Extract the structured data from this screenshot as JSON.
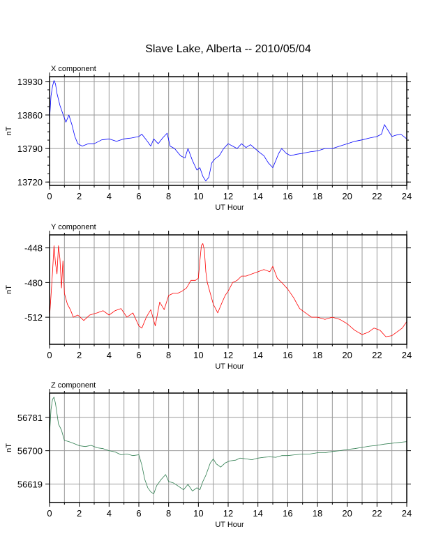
{
  "page": {
    "title": "Slave Lake, Alberta -- 2010/05/04"
  },
  "chart_data": [
    {
      "type": "line",
      "title": "X component",
      "xlabel": "UT Hour",
      "ylabel": "nT",
      "xlim": [
        0,
        24
      ],
      "ylim": [
        13713,
        13940
      ],
      "xticks": [
        0,
        2,
        4,
        6,
        8,
        10,
        12,
        14,
        16,
        18,
        20,
        22,
        24
      ],
      "yticks": [
        13720,
        13790,
        13860,
        13930
      ],
      "grid": true,
      "color": "#0000ff",
      "series": [
        {
          "x": [
            0,
            0.1,
            0.2,
            0.3,
            0.4,
            0.5,
            0.7,
            0.9,
            1.1,
            1.3,
            1.5,
            1.7,
            1.9,
            2.2,
            2.6,
            3.0,
            3.5,
            4.0,
            4.5,
            5.0,
            5.5,
            6.0,
            6.2,
            6.5,
            6.8,
            7.0,
            7.3,
            7.6,
            7.9,
            8.1,
            8.4,
            8.8,
            9.1,
            9.3,
            9.6,
            9.9,
            10.1,
            10.3,
            10.5,
            10.7,
            10.9,
            11.1,
            11.4,
            11.7,
            12.0,
            12.3,
            12.6,
            12.9,
            13.2,
            13.5,
            13.8,
            14.1,
            14.4,
            14.7,
            15.0,
            15.2,
            15.4,
            15.6,
            15.9,
            16.2,
            16.6,
            17.0,
            17.5,
            18.0,
            18.5,
            19.0,
            19.5,
            20.0,
            20.5,
            21.0,
            21.5,
            22.0,
            22.3,
            22.5,
            22.8,
            23.0,
            23.3,
            23.6,
            24.0
          ],
          "y": [
            13850,
            13900,
            13920,
            13932,
            13925,
            13905,
            13880,
            13862,
            13845,
            13860,
            13840,
            13815,
            13800,
            13795,
            13800,
            13800,
            13808,
            13810,
            13805,
            13810,
            13812,
            13815,
            13820,
            13808,
            13795,
            13810,
            13800,
            13812,
            13822,
            13795,
            13790,
            13775,
            13770,
            13790,
            13765,
            13745,
            13750,
            13732,
            13722,
            13730,
            13760,
            13768,
            13775,
            13790,
            13800,
            13795,
            13790,
            13800,
            13792,
            13798,
            13790,
            13782,
            13775,
            13760,
            13750,
            13765,
            13780,
            13790,
            13780,
            13775,
            13778,
            13780,
            13783,
            13785,
            13790,
            13790,
            13795,
            13800,
            13805,
            13808,
            13812,
            13815,
            13820,
            13840,
            13825,
            13815,
            13818,
            13820,
            13810
          ]
        }
      ]
    },
    {
      "type": "line",
      "title": "Y component",
      "xlabel": "UT Hour",
      "ylabel": "nT",
      "xlim": [
        0,
        24
      ],
      "ylim": [
        -537,
        -436
      ],
      "xticks": [
        0,
        2,
        4,
        6,
        8,
        10,
        12,
        14,
        16,
        18,
        20,
        22,
        24
      ],
      "yticks": [
        -448,
        -480,
        -512
      ],
      "grid": true,
      "color": "#ff0000",
      "series": [
        {
          "x": [
            0,
            0.1,
            0.2,
            0.3,
            0.4,
            0.5,
            0.6,
            0.7,
            0.8,
            0.9,
            1.0,
            1.2,
            1.4,
            1.6,
            1.9,
            2.3,
            2.7,
            3.2,
            3.6,
            4.0,
            4.4,
            4.8,
            5.2,
            5.6,
            6.0,
            6.2,
            6.5,
            6.8,
            7.1,
            7.4,
            7.7,
            8.0,
            8.3,
            8.6,
            8.9,
            9.2,
            9.5,
            9.8,
            10.0,
            10.1,
            10.2,
            10.3,
            10.4,
            10.5,
            10.6,
            10.8,
            11.0,
            11.3,
            11.6,
            11.8,
            12.0,
            12.3,
            12.6,
            12.9,
            13.2,
            13.6,
            14.0,
            14.4,
            14.8,
            15.0,
            15.3,
            15.6,
            16.0,
            16.4,
            16.8,
            17.2,
            17.6,
            18.0,
            18.5,
            19.0,
            19.5,
            20.0,
            20.5,
            21.0,
            21.4,
            21.8,
            22.2,
            22.6,
            23.0,
            23.3,
            23.7,
            24.0
          ],
          "y": [
            -512,
            -492,
            -470,
            -446,
            -462,
            -472,
            -446,
            -458,
            -485,
            -460,
            -490,
            -500,
            -505,
            -512,
            -510,
            -515,
            -510,
            -508,
            -506,
            -510,
            -506,
            -504,
            -512,
            -508,
            -520,
            -522,
            -512,
            -505,
            -520,
            -498,
            -505,
            -492,
            -490,
            -490,
            -488,
            -485,
            -478,
            -478,
            -476,
            -460,
            -446,
            -444,
            -450,
            -470,
            -480,
            -490,
            -500,
            -508,
            -498,
            -492,
            -488,
            -480,
            -478,
            -474,
            -474,
            -472,
            -470,
            -468,
            -470,
            -465,
            -476,
            -480,
            -486,
            -494,
            -504,
            -508,
            -512,
            -512,
            -514,
            -512,
            -514,
            -518,
            -524,
            -528,
            -526,
            -522,
            -524,
            -530,
            -529,
            -526,
            -522,
            -516
          ]
        }
      ]
    },
    {
      "type": "line",
      "title": "Z component",
      "xlabel": "UT Hour",
      "ylabel": "nT",
      "xlim": [
        0,
        24
      ],
      "ylim": [
        56574,
        56840
      ],
      "xticks": [
        0,
        2,
        4,
        6,
        8,
        10,
        12,
        14,
        16,
        18,
        20,
        22,
        24
      ],
      "yticks": [
        56781,
        56700,
        56619
      ],
      "grid": true,
      "color": "#2e7d4f",
      "series": [
        {
          "x": [
            0,
            0.1,
            0.2,
            0.3,
            0.4,
            0.5,
            0.6,
            0.8,
            1.0,
            1.3,
            1.6,
            2.0,
            2.4,
            2.8,
            3.2,
            3.6,
            4.0,
            4.4,
            4.8,
            5.2,
            5.6,
            6.0,
            6.2,
            6.4,
            6.6,
            6.8,
            7.0,
            7.2,
            7.5,
            7.8,
            8.0,
            8.3,
            8.6,
            9.0,
            9.3,
            9.6,
            9.9,
            10.1,
            10.3,
            10.5,
            10.8,
            11.0,
            11.2,
            11.5,
            11.8,
            12.1,
            12.5,
            12.8,
            13.2,
            13.6,
            14.0,
            14.4,
            14.8,
            15.2,
            15.6,
            16.0,
            16.5,
            17.0,
            17.5,
            18.0,
            18.5,
            19.0,
            19.5,
            20.0,
            20.5,
            21.0,
            21.5,
            22.0,
            22.5,
            23.0,
            23.5,
            24.0
          ],
          "y": [
            56740,
            56800,
            56825,
            56830,
            56815,
            56790,
            56765,
            56750,
            56725,
            56722,
            56718,
            56712,
            56710,
            56713,
            56707,
            56705,
            56700,
            56697,
            56690,
            56692,
            56688,
            56690,
            56665,
            56630,
            56610,
            56600,
            56595,
            56615,
            56630,
            56642,
            56625,
            56622,
            56615,
            56605,
            56618,
            56602,
            56610,
            56605,
            56625,
            56640,
            56670,
            56680,
            56668,
            56660,
            56670,
            56675,
            56677,
            56682,
            56680,
            56678,
            56682,
            56684,
            56685,
            56684,
            56688,
            56688,
            56690,
            56692,
            56692,
            56695,
            56695,
            56698,
            56700,
            56703,
            56705,
            56708,
            56711,
            56713,
            56716,
            56718,
            56720,
            56722
          ]
        }
      ]
    }
  ]
}
